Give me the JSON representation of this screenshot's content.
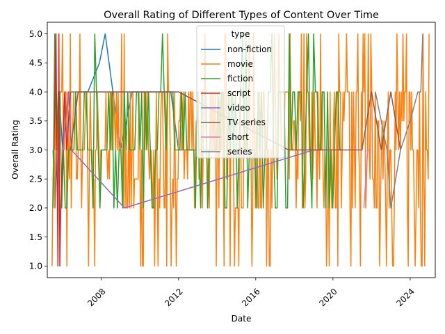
{
  "chart_data": {
    "type": "line",
    "title": "Overall Rating of Different Types of Content Over Time",
    "xlabel": "Date",
    "ylabel": "Overall Rating",
    "xlim": [
      2005.2,
      2025.3
    ],
    "ylim": [
      0.8,
      5.2
    ],
    "x_ticks": [
      2008,
      2012,
      2016,
      2020,
      2024
    ],
    "x_tick_labels": [
      "2008",
      "2012",
      "2016",
      "2020",
      "2024"
    ],
    "y_ticks": [
      1.0,
      1.5,
      2.0,
      2.5,
      3.0,
      3.5,
      4.0,
      4.5,
      5.0
    ],
    "y_tick_labels": [
      "1.0",
      "1.5",
      "2.0",
      "2.5",
      "3.0",
      "3.5",
      "4.0",
      "4.5",
      "5.0"
    ],
    "grid": false,
    "legend": {
      "title": "type",
      "placement": "upper-center"
    },
    "series": [
      {
        "name": "non-fiction",
        "color": "#1f77b4",
        "style": "dense",
        "x": [
          2005.5,
          2005.6,
          2005.8,
          2006.0,
          2006.3,
          2006.8,
          2007.3,
          2007.9,
          2008.2,
          2008.6,
          2009.0,
          2009.6,
          2010.3,
          2011.0,
          2011.6,
          2012.0,
          2012.6,
          2013.3,
          2014.0
        ],
        "y": [
          3,
          2,
          4,
          3,
          4,
          4,
          4,
          4.5,
          5,
          4,
          3,
          4,
          4,
          4,
          4,
          3,
          3,
          3,
          3
        ]
      },
      {
        "name": "movie",
        "color": "#ff7f0e",
        "style": "dense",
        "x": [
          2005.45,
          2025.0
        ],
        "y": [
          3,
          3
        ]
      },
      {
        "name": "fiction",
        "color": "#2ca02c",
        "style": "dense",
        "x": [
          2005.5,
          2020.5
        ],
        "y": [
          3,
          3
        ]
      },
      {
        "name": "script",
        "color": "#d62728",
        "style": "points",
        "x": [
          2005.55,
          2005.65,
          2005.75,
          2005.8,
          2005.85,
          2005.9,
          2006.0,
          2006.1,
          2006.2,
          2006.4
        ],
        "y": [
          3,
          5,
          1,
          5,
          1,
          2,
          3,
          4,
          3,
          4
        ]
      },
      {
        "name": "video",
        "color": "#9467bd",
        "style": "points",
        "x": [
          2006.0,
          2006.3,
          2006.45,
          2009.2,
          2019.0,
          2019.3
        ],
        "y": [
          3,
          4,
          3,
          2,
          3,
          3
        ]
      },
      {
        "name": "TV series",
        "color": "#8c564b",
        "style": "points",
        "x": [
          2006.4,
          2006.8,
          2012.0,
          2017.7,
          2019.0,
          2020.0,
          2021.0,
          2021.5,
          2022.0,
          2022.5,
          2023.0,
          2023.5
        ],
        "y": [
          3,
          4,
          4,
          3,
          3,
          3,
          3,
          3,
          4,
          3,
          4,
          3
        ]
      },
      {
        "name": "short",
        "color": "#e377c2",
        "style": "points",
        "x": [
          2021.6,
          2021.8,
          2021.95
        ],
        "y": [
          2,
          3,
          3
        ]
      },
      {
        "name": "series",
        "color": "#7f7f7f",
        "style": "points",
        "x": [
          2022.2,
          2022.8,
          2023.0,
          2023.5,
          2024.0,
          2024.4,
          2024.55,
          2024.65
        ],
        "y": [
          4,
          3,
          2,
          3,
          3.5,
          4,
          4,
          5
        ]
      }
    ]
  }
}
